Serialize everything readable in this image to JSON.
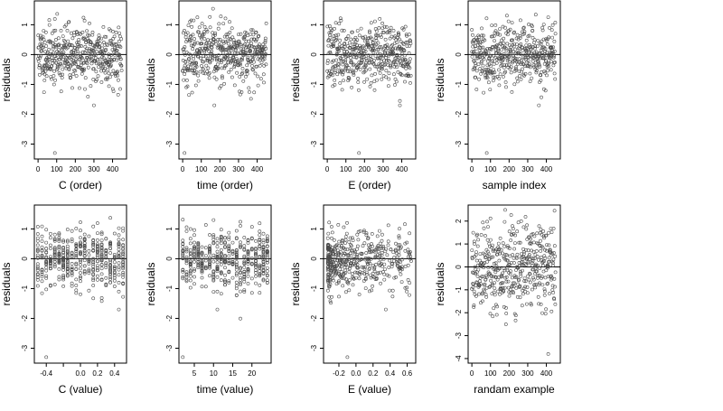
{
  "style": {
    "point_color": "#4a4a4a",
    "background": "#ffffff"
  },
  "chart_data": [
    {
      "type": "scatter",
      "xlabel": "C (order)",
      "ylabel": "residuals",
      "xlim": [
        -20,
        475
      ],
      "ylim": [
        -3.5,
        1.8
      ],
      "xticks": [
        0,
        100,
        200,
        300,
        400
      ],
      "xtick_labels": [
        "0",
        "100",
        "200",
        "300",
        "400"
      ],
      "yticks": [
        -3,
        -2,
        -1,
        0,
        1
      ],
      "ytick_labels": [
        "-3",
        "-2",
        "-1",
        "0",
        "1"
      ],
      "zero_line": true,
      "n_points": 450,
      "x_kind": "index",
      "y_sd": 0.5,
      "y_outliers": [
        [
          90,
          -3.3
        ],
        [
          300,
          -1.7
        ]
      ],
      "seed": 11
    },
    {
      "type": "scatter",
      "xlabel": "time (order)",
      "ylabel": "residuals",
      "xlim": [
        -20,
        475
      ],
      "ylim": [
        -3.5,
        1.8
      ],
      "xticks": [
        0,
        100,
        200,
        300,
        400
      ],
      "xtick_labels": [
        "0",
        "100",
        "200",
        "300",
        "400"
      ],
      "yticks": [
        -3,
        -2,
        -1,
        0,
        1
      ],
      "ytick_labels": [
        "-3",
        "-2",
        "-1",
        "0",
        "1"
      ],
      "zero_line": true,
      "n_points": 450,
      "x_kind": "index",
      "y_sd": 0.5,
      "y_outliers": [
        [
          10,
          -3.3
        ],
        [
          170,
          -1.7
        ]
      ],
      "seed": 23
    },
    {
      "type": "scatter",
      "xlabel": "E (order)",
      "ylabel": "residuals",
      "xlim": [
        -20,
        475
      ],
      "ylim": [
        -3.5,
        1.8
      ],
      "xticks": [
        0,
        100,
        200,
        300,
        400
      ],
      "xtick_labels": [
        "0",
        "100",
        "200",
        "300",
        "400"
      ],
      "yticks": [
        -3,
        -2,
        -1,
        0,
        1
      ],
      "ytick_labels": [
        "-3",
        "-2",
        "-1",
        "0",
        "1"
      ],
      "zero_line": true,
      "n_points": 450,
      "x_kind": "index",
      "y_sd": 0.5,
      "y_outliers": [
        [
          170,
          -3.3
        ],
        [
          390,
          -1.7
        ]
      ],
      "seed": 37
    },
    {
      "type": "scatter",
      "xlabel": "sample index",
      "ylabel": "residuals",
      "xlim": [
        -20,
        475
      ],
      "ylim": [
        -3.5,
        1.8
      ],
      "xticks": [
        0,
        100,
        200,
        300,
        400
      ],
      "xtick_labels": [
        "0",
        "100",
        "200",
        "300",
        "400"
      ],
      "yticks": [
        -3,
        -2,
        -1,
        0,
        1
      ],
      "ytick_labels": [
        "-3",
        "-2",
        "-1",
        "0",
        "1"
      ],
      "zero_line": true,
      "n_points": 450,
      "x_kind": "index",
      "y_sd": 0.5,
      "y_outliers": [
        [
          80,
          -3.3
        ],
        [
          360,
          -1.7
        ]
      ],
      "seed": 41
    },
    {
      "type": "scatter",
      "xlabel": "C (value)",
      "ylabel": "residuals",
      "xlim": [
        -0.54,
        0.54
      ],
      "ylim": [
        -3.5,
        1.8
      ],
      "xticks": [
        -0.4,
        -0.2,
        0.0,
        0.2,
        0.4
      ],
      "xtick_labels": [
        "-0.4",
        "",
        "0.0",
        "0.2",
        "0.4"
      ],
      "yticks": [
        -3,
        -2,
        -1,
        0,
        1
      ],
      "ytick_labels": [
        "-3",
        "-2",
        "-1",
        "0",
        "1"
      ],
      "zero_line": true,
      "n_points": 450,
      "x_kind": "discrete",
      "x_levels": [
        -0.5,
        -0.45,
        -0.4,
        -0.35,
        -0.3,
        -0.25,
        -0.2,
        -0.15,
        -0.1,
        -0.05,
        0.0,
        0.05,
        0.1,
        0.15,
        0.2,
        0.25,
        0.3,
        0.35,
        0.4,
        0.45,
        0.5
      ],
      "y_sd": 0.5,
      "y_outliers": [
        [
          -0.4,
          -3.3
        ],
        [
          0.45,
          -1.7
        ]
      ],
      "seed": 53
    },
    {
      "type": "scatter",
      "xlabel": "time (value)",
      "ylabel": "residuals",
      "xlim": [
        1,
        25
      ],
      "ylim": [
        -3.5,
        1.8
      ],
      "xticks": [
        5,
        10,
        15,
        20
      ],
      "xtick_labels": [
        "5",
        "10",
        "15",
        "20"
      ],
      "yticks": [
        -3,
        -2,
        -1,
        0,
        1
      ],
      "ytick_labels": [
        "-3",
        "-2",
        "-1",
        "0",
        "1"
      ],
      "zero_line": true,
      "n_points": 450,
      "x_kind": "discrete",
      "x_levels": [
        2,
        3,
        4,
        5,
        6,
        7,
        8,
        9,
        10,
        11,
        12,
        13,
        14,
        15,
        16,
        17,
        18,
        19,
        20,
        21,
        22,
        23,
        24
      ],
      "y_sd": 0.5,
      "y_outliers": [
        [
          2,
          -3.3
        ],
        [
          11,
          -1.7
        ]
      ],
      "seed": 61
    },
    {
      "type": "scatter",
      "xlabel": "E (value)",
      "ylabel": "residuals",
      "xlim": [
        -0.38,
        0.7
      ],
      "ylim": [
        -3.5,
        1.8
      ],
      "xticks": [
        -0.2,
        0.0,
        0.2,
        0.4,
        0.6
      ],
      "xtick_labels": [
        "-0.2",
        "0.0",
        "0.2",
        "0.4",
        "0.6"
      ],
      "yticks": [
        -3,
        -2,
        -1,
        0,
        1
      ],
      "ytick_labels": [
        "-3",
        "-2",
        "-1",
        "0",
        "1"
      ],
      "zero_line": true,
      "n_points": 450,
      "x_kind": "skewed",
      "y_sd": 0.5,
      "y_outliers": [
        [
          -0.1,
          -3.3
        ],
        [
          0.35,
          -1.7
        ]
      ],
      "seed": 73
    },
    {
      "type": "scatter",
      "xlabel": "randam example",
      "ylabel": "residuals",
      "xlim": [
        -20,
        475
      ],
      "ylim": [
        -4.2,
        2.7
      ],
      "xticks": [
        0,
        100,
        200,
        300,
        400
      ],
      "xtick_labels": [
        "0",
        "100",
        "200",
        "300",
        "400"
      ],
      "yticks": [
        -4,
        -3,
        -2,
        -1,
        0,
        1,
        2
      ],
      "ytick_labels": [
        "-4",
        "-3",
        "-2",
        "-1",
        "0",
        "1",
        "2"
      ],
      "zero_line": true,
      "n_points": 450,
      "x_kind": "index",
      "y_sd": 1.0,
      "y_outliers": [
        [
          410,
          -3.8
        ]
      ],
      "seed": 89
    }
  ]
}
